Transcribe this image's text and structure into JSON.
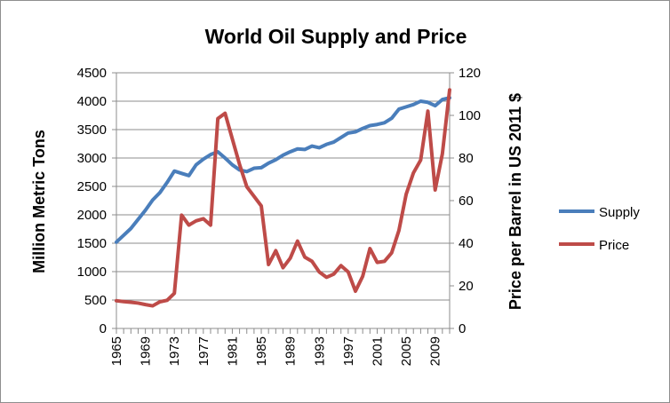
{
  "chart_data": {
    "type": "line",
    "title": "World Oil Supply and Price",
    "ylabel": "Million Metric Tons",
    "y2label": "Price per Barrel in US 2011 $",
    "xlabel": "",
    "ylim": [
      0,
      4500
    ],
    "y2lim": [
      0,
      120
    ],
    "yticks": [
      "0",
      "500",
      "1000",
      "1500",
      "2000",
      "2500",
      "3000",
      "3500",
      "4000",
      "4500"
    ],
    "y2ticks": [
      "0",
      "20",
      "40",
      "60",
      "80",
      "100",
      "120"
    ],
    "xticks": [
      "1965",
      "1969",
      "1973",
      "1977",
      "1981",
      "1985",
      "1989",
      "1993",
      "1997",
      "2001",
      "2005",
      "2009"
    ],
    "grid": true,
    "legend_position": "right",
    "x": [
      1965,
      1966,
      1967,
      1968,
      1969,
      1970,
      1971,
      1972,
      1973,
      1974,
      1975,
      1976,
      1977,
      1978,
      1979,
      1980,
      1981,
      1982,
      1983,
      1984,
      1985,
      1986,
      1987,
      1988,
      1989,
      1990,
      1991,
      1992,
      1993,
      1994,
      1995,
      1996,
      1997,
      1998,
      1999,
      2000,
      2001,
      2002,
      2003,
      2004,
      2005,
      2006,
      2007,
      2008,
      2009,
      2010,
      2011
    ],
    "series": [
      {
        "name": "Supply",
        "axis": "left",
        "color": "#4a7ebb",
        "values": [
          1520,
          1640,
          1760,
          1920,
          2080,
          2260,
          2390,
          2570,
          2770,
          2730,
          2690,
          2880,
          2980,
          3060,
          3110,
          3000,
          2880,
          2790,
          2760,
          2820,
          2830,
          2910,
          2970,
          3050,
          3110,
          3160,
          3150,
          3210,
          3180,
          3240,
          3280,
          3360,
          3440,
          3460,
          3520,
          3570,
          3590,
          3620,
          3700,
          3860,
          3900,
          3940,
          4000,
          3980,
          3920,
          4030,
          4060
        ]
      },
      {
        "name": "Price",
        "axis": "right",
        "color": "#be4b48",
        "values": [
          13,
          12.6,
          12.3,
          11.9,
          11.2,
          10.6,
          12.5,
          13.2,
          16.5,
          53.2,
          48.5,
          50.5,
          51.5,
          48.5,
          98.5,
          101,
          89,
          77,
          66.5,
          62,
          57.5,
          30,
          36.5,
          28.5,
          33,
          41,
          33.5,
          31.5,
          26.5,
          24,
          25.5,
          29.5,
          26.5,
          17.5,
          24.5,
          37.5,
          31,
          31.5,
          35.5,
          46,
          63,
          73,
          79,
          102,
          65,
          82,
          112
        ]
      }
    ]
  }
}
